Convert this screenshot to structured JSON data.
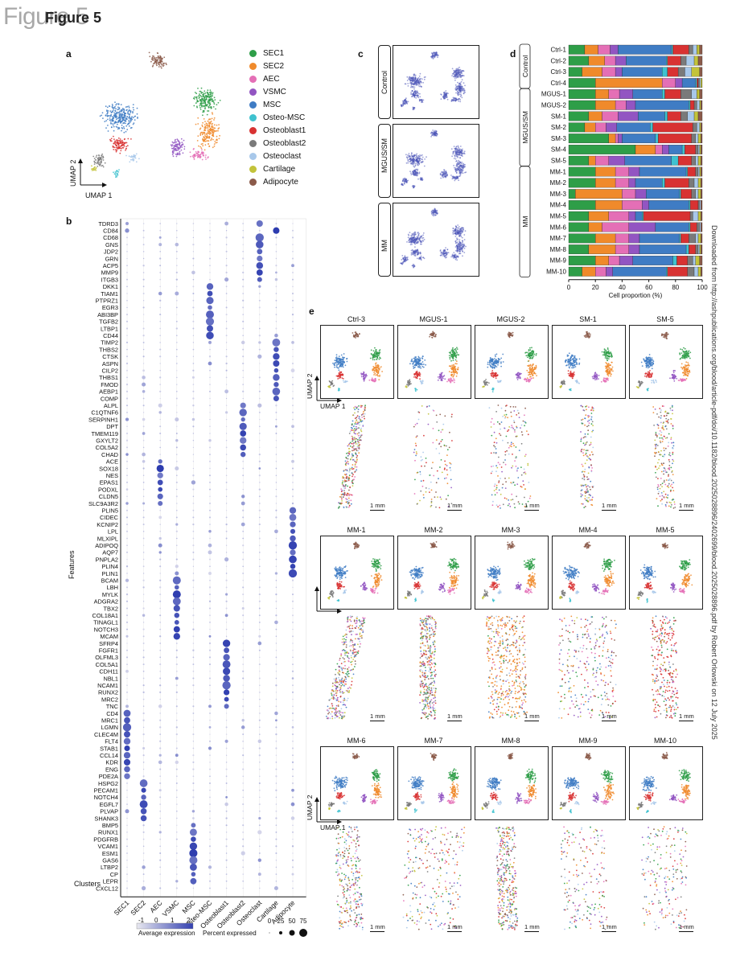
{
  "figure": {
    "title_ghost": "Figure 5",
    "title": "Figure 5"
  },
  "panels": {
    "a": "a",
    "b": "b",
    "c": "c",
    "d": "d",
    "e": "e"
  },
  "side_note": "Downloaded from http://ashpublications.org/blood/article-pdf/doi/10.1182/blood.2025028896/2402699/blood.2025028896.pdf by Robert Orlowski on 12 July 2025",
  "cluster_colors": {
    "SEC1": "#2e9e48",
    "SEC2": "#f08a2b",
    "AEC": "#e46fb6",
    "VSMC": "#9255c2",
    "MSC": "#3f7cc4",
    "Osteo-MSC": "#3fc2cf",
    "Osteoblast1": "#d83232",
    "Osteoblast2": "#7a7a7a",
    "Osteoclast": "#a8c8ea",
    "Cartilage": "#c3c33a",
    "Adipocyte": "#8b5a4a"
  },
  "panel_a": {
    "legend": [
      "SEC1",
      "SEC2",
      "AEC",
      "VSMC",
      "MSC",
      "Osteo-MSC",
      "Osteoblast1",
      "Osteoblast2",
      "Osteoclast",
      "Cartilage",
      "Adipocyte"
    ],
    "umap1": "UMAP 1",
    "umap2": "UMAP 2"
  },
  "panel_b": {
    "clusters": [
      "SEC1",
      "SEC2",
      "AEC",
      "VSMC",
      "MSC",
      "Osteo-MSC",
      "Osteoblast1",
      "Osteoblast2",
      "Osteoclast",
      "Cartilage",
      "Adipocyte"
    ],
    "features": [
      "TDRD3",
      "CD84",
      "CD68",
      "GNS",
      "JDP2",
      "GRN",
      "ACP5",
      "MMP9",
      "ITGB3",
      "DKK1",
      "TIAM1",
      "PTPRZ1",
      "EGR3",
      "ABI3BP",
      "TGFB2",
      "LTBP1",
      "CD44",
      "TIMP2",
      "THBS2",
      "CTSK",
      "ASPN",
      "CILP2",
      "THBS1",
      "FMOD",
      "AEBP1",
      "COMP",
      "ALPL",
      "C1QTNF6",
      "SERPINH1",
      "DPT",
      "TMEM119",
      "GXYLT2",
      "COL5A2",
      "CHAD",
      "ACE",
      "SOX18",
      "NES",
      "EPAS1",
      "PODXL",
      "CLDN5",
      "SLC9A3R2",
      "PLIN5",
      "CIDEC",
      "KCNIP2",
      "LPL",
      "MLXIPL",
      "ADIPOQ",
      "AQP7",
      "PNPLA2",
      "PLIN4",
      "PLIN1",
      "BCAM",
      "LBH",
      "MYLK",
      "ADGRA2",
      "TBX2",
      "COL18A1",
      "TINAGL1",
      "NOTCH3",
      "MCAM",
      "SFRP4",
      "FGFR1",
      "OLFML3",
      "COL5A1",
      "CDH11",
      "NBL1",
      "NCAM1",
      "RUNX2",
      "MRC2",
      "TNC",
      "CD4",
      "MRC1",
      "LGMN",
      "CLEC4M",
      "FLT4",
      "STAB1",
      "CCL14",
      "KDR",
      "ENG",
      "PDE2A",
      "HSPG2",
      "PECAM1",
      "NOTCH4",
      "EGFL7",
      "PLVAP",
      "SHANK3",
      "BMP5",
      "RUNX1",
      "PDGFRB",
      "VCAM1",
      "ESM1",
      "GAS6",
      "LTBP2",
      "CP",
      "LEPR",
      "CXCL12"
    ],
    "ylabel": "Features",
    "xlabel": "Clusters",
    "avg_expr_label": "Average expression",
    "avg_expr_ticks": [
      "-1",
      "0",
      "1",
      "2"
    ],
    "pct_label": "Percent expressed",
    "pct_ticks": [
      "0",
      "25",
      "50",
      "75"
    ]
  },
  "panel_c": {
    "groups": [
      "Control",
      "MGUS/SM",
      "MM"
    ]
  },
  "panel_d": {
    "groups": [
      "Control",
      "MGUS/SM",
      "MM"
    ],
    "xlabel": "Cell proportion (%)",
    "xticks": [
      "0",
      "20",
      "40",
      "60",
      "80",
      "100"
    ],
    "samples": [
      {
        "name": "Ctrl-1",
        "group": "Control",
        "props": [
          12,
          10,
          9,
          6,
          40,
          1,
          12,
          3,
          3,
          2,
          2
        ]
      },
      {
        "name": "Ctrl-2",
        "group": "Control",
        "props": [
          15,
          12,
          8,
          8,
          30,
          1,
          10,
          4,
          6,
          3,
          3
        ]
      },
      {
        "name": "Ctrl-3",
        "group": "Control",
        "props": [
          10,
          15,
          10,
          5,
          30,
          4,
          8,
          5,
          5,
          6,
          2
        ]
      },
      {
        "name": "Ctrl-4",
        "group": "Control",
        "props": [
          20,
          50,
          10,
          5,
          10,
          1,
          1,
          1,
          1,
          1,
          0
        ]
      },
      {
        "name": "MGUS-1",
        "group": "MGUS/SM",
        "props": [
          20,
          10,
          8,
          10,
          22,
          2,
          12,
          8,
          4,
          2,
          2
        ]
      },
      {
        "name": "MGUS-2",
        "group": "MGUS/SM",
        "props": [
          20,
          15,
          8,
          7,
          40,
          1,
          3,
          2,
          2,
          1,
          1
        ]
      },
      {
        "name": "SM-1",
        "group": "MGUS/SM",
        "props": [
          15,
          10,
          12,
          15,
          20,
          2,
          10,
          5,
          5,
          3,
          3
        ]
      },
      {
        "name": "SM-2",
        "group": "MGUS/SM",
        "props": [
          12,
          8,
          8,
          8,
          25,
          2,
          30,
          3,
          2,
          1,
          1
        ]
      },
      {
        "name": "SM-3",
        "group": "MGUS/SM",
        "props": [
          30,
          5,
          2,
          3,
          25,
          2,
          25,
          3,
          2,
          2,
          1
        ]
      },
      {
        "name": "SM-4",
        "group": "MGUS/SM",
        "props": [
          50,
          15,
          5,
          5,
          10,
          2,
          8,
          2,
          1,
          1,
          1
        ]
      },
      {
        "name": "SM-5",
        "group": "MGUS/SM",
        "props": [
          15,
          5,
          10,
          12,
          35,
          5,
          10,
          3,
          2,
          2,
          1
        ]
      },
      {
        "name": "MM-1",
        "group": "MM",
        "props": [
          20,
          15,
          10,
          8,
          35,
          1,
          6,
          2,
          1,
          1,
          1
        ]
      },
      {
        "name": "MM-2",
        "group": "MM",
        "props": [
          20,
          15,
          10,
          5,
          20,
          2,
          18,
          4,
          3,
          2,
          1
        ]
      },
      {
        "name": "MM-3",
        "group": "MM",
        "props": [
          5,
          35,
          10,
          8,
          25,
          1,
          8,
          3,
          2,
          2,
          1
        ]
      },
      {
        "name": "MM-4",
        "group": "MM",
        "props": [
          20,
          20,
          15,
          5,
          30,
          1,
          6,
          1,
          1,
          0,
          1
        ]
      },
      {
        "name": "MM-5",
        "group": "MM",
        "props": [
          15,
          15,
          15,
          5,
          5,
          1,
          35,
          2,
          4,
          2,
          1
        ]
      },
      {
        "name": "MM-6",
        "group": "MM",
        "props": [
          15,
          10,
          20,
          20,
          25,
          1,
          5,
          2,
          1,
          0,
          1
        ]
      },
      {
        "name": "MM-7",
        "group": "MM",
        "props": [
          20,
          15,
          10,
          8,
          30,
          1,
          6,
          5,
          2,
          2,
          1
        ]
      },
      {
        "name": "MM-8",
        "group": "MM",
        "props": [
          15,
          20,
          10,
          8,
          35,
          2,
          5,
          2,
          1,
          1,
          1
        ]
      },
      {
        "name": "MM-9",
        "group": "MM",
        "props": [
          20,
          10,
          8,
          10,
          30,
          3,
          8,
          4,
          2,
          3,
          2
        ]
      },
      {
        "name": "MM-10",
        "group": "MM",
        "props": [
          10,
          10,
          8,
          5,
          40,
          1,
          15,
          5,
          3,
          2,
          1
        ]
      }
    ]
  },
  "panel_e": {
    "umap1": "UMAP 1",
    "umap2": "UMAP 2",
    "scale_label": "1 mm",
    "samples": [
      "Ctrl-3",
      "MGUS-1",
      "MGUS-2",
      "SM-1",
      "SM-5",
      "MM-1",
      "MM-2",
      "MM-3",
      "MM-4",
      "MM-5",
      "MM-6",
      "MM-7",
      "MM-8",
      "MM-9",
      "MM-10"
    ]
  }
}
